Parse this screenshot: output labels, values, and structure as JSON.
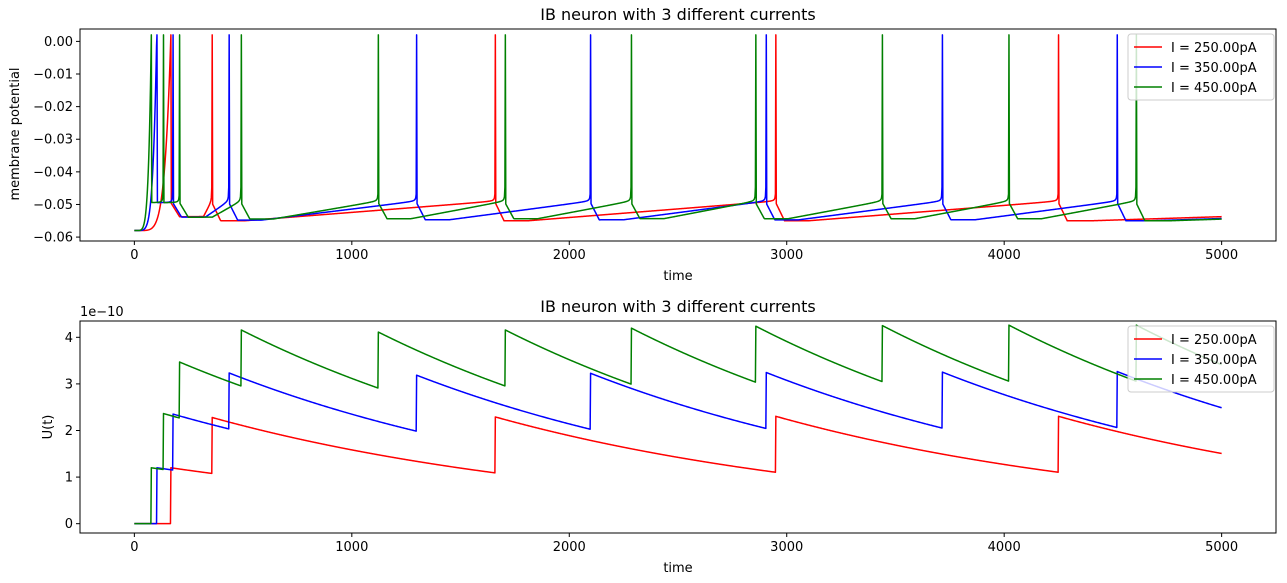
{
  "chart_data": [
    {
      "type": "line",
      "title": "IB neuron with 3 different currents",
      "xlabel": "time",
      "ylabel": "membrane potential",
      "xlim": [
        -250,
        5250
      ],
      "ylim": [
        -0.0612,
        0.0038
      ],
      "xticks": [
        0,
        1000,
        2000,
        3000,
        4000,
        5000
      ],
      "xtick_labels": [
        "0",
        "1000",
        "2000",
        "3000",
        "4000",
        "5000"
      ],
      "yticks": [
        -0.06,
        -0.05,
        -0.04,
        -0.03,
        -0.02,
        -0.01,
        0.0
      ],
      "ytick_labels": [
        "−0.06",
        "−0.05",
        "−0.04",
        "−0.03",
        "−0.02",
        "−0.01",
        "0.00"
      ],
      "offset_text": "",
      "grid": false,
      "legend_position": "top-right",
      "series": [
        {
          "name": "I = 250.00pA",
          "color": "#ff0000",
          "spikes": [
            168,
            357,
            1660,
            2950,
            4250
          ]
        },
        {
          "name": "I = 350.00pA",
          "color": "#0000ff",
          "spikes": [
            103,
            177,
            435,
            1298,
            2098,
            2905,
            3715,
            4520
          ]
        },
        {
          "name": "I = 450.00pA",
          "color": "#008000",
          "spikes": [
            78,
            133,
            208,
            491,
            1122,
            1705,
            2285,
            2857,
            3440,
            4022,
            4607
          ]
        }
      ]
    },
    {
      "type": "line",
      "title": "IB neuron with 3 different currents",
      "xlabel": "time",
      "ylabel": "U(t)",
      "xlim": [
        -250,
        5250
      ],
      "ylim": [
        -2e-11,
        4.35e-10
      ],
      "xticks": [
        0,
        1000,
        2000,
        3000,
        4000,
        5000
      ],
      "xtick_labels": [
        "0",
        "1000",
        "2000",
        "3000",
        "4000",
        "5000"
      ],
      "yticks": [
        0,
        1e-10,
        2e-10,
        3e-10,
        4e-10
      ],
      "ytick_labels": [
        "0",
        "1",
        "2",
        "3",
        "4"
      ],
      "offset_text": "1e−10",
      "grid": false,
      "legend_position": "top-right",
      "series": [
        {
          "name": "I = 250.00pA",
          "color": "#ff0000"
        },
        {
          "name": "I = 350.00pA",
          "color": "#0000ff"
        },
        {
          "name": "I = 450.00pA",
          "color": "#008000"
        }
      ]
    }
  ]
}
